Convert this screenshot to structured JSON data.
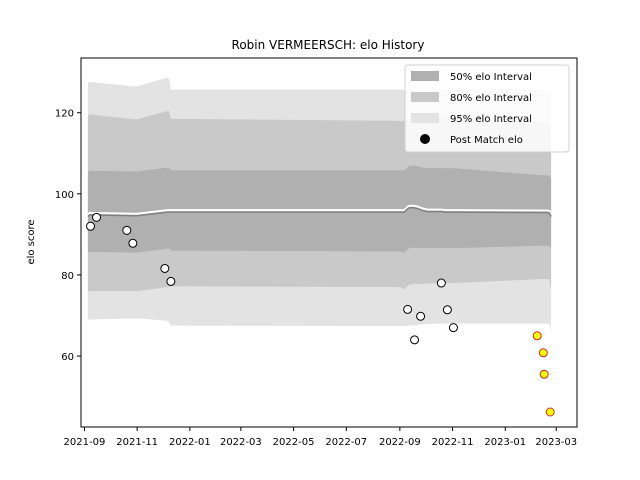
{
  "chart_data": {
    "type": "area",
    "title": "Robin VERMEERSCH: elo History",
    "xlabel": "",
    "ylabel": "elo score",
    "xlim": [
      "2021-08-28",
      "2023-03-25"
    ],
    "ylim": [
      42.5,
      133.5
    ],
    "grid": false,
    "legend_position": "top-right",
    "x_ticks": [
      "2021-09",
      "2021-11",
      "2022-01",
      "2022-03",
      "2022-05",
      "2022-07",
      "2022-09",
      "2022-11",
      "2023-01",
      "2023-03"
    ],
    "y_ticks": [
      60,
      80,
      100,
      120
    ],
    "legend": [
      {
        "label": "50% elo Interval",
        "kind": "patch",
        "color": "#b0b0b0"
      },
      {
        "label": "80% elo Interval",
        "kind": "patch",
        "color": "#c9c9c9"
      },
      {
        "label": "95% elo Interval",
        "kind": "patch",
        "color": "#e3e3e3"
      },
      {
        "label": "Post Match elo",
        "kind": "marker",
        "color": "#000000"
      }
    ],
    "colors": {
      "band_50": "#b0b0b0",
      "band_80": "#c9c9c9",
      "band_95": "#e3e3e3",
      "mean_line": "#808080",
      "marker_edge": "#000000",
      "marker_fill": "#ffffff",
      "recent_edge": "#d62728",
      "recent_fill": "#ffff00"
    },
    "bands": {
      "x": [
        "2021-09-05",
        "2021-09-07",
        "2021-10-28",
        "2021-11-01",
        "2021-12-06",
        "2021-12-08",
        "2021-12-10",
        "2021-12-12",
        "2022-09-01",
        "2022-09-06",
        "2022-09-11",
        "2022-09-16",
        "2022-09-21",
        "2022-09-26",
        "2022-09-29",
        "2022-10-01",
        "2022-10-04",
        "2022-10-07",
        "2022-10-17",
        "2022-10-20",
        "2022-10-23",
        "2022-10-27",
        "2022-11-04",
        "2023-02-12",
        "2023-02-14",
        "2023-02-16",
        "2023-02-18",
        "2023-02-19",
        "2023-02-20",
        "2023-02-21",
        "2023-02-23"
      ],
      "mean": [
        94.4,
        94.8,
        94.6,
        94.6,
        95.5,
        95.5,
        95.5,
        95.5,
        95.5,
        95.5,
        96.5,
        96.6,
        96.4,
        96.0,
        95.8,
        95.7,
        95.6,
        95.6,
        95.6,
        95.6,
        95.5,
        95.5,
        95.5,
        95.4,
        95.4,
        95.4,
        95.4,
        95.4,
        95.3,
        95.3,
        94.4
      ],
      "p50": [
        [
          85.3,
          105.3
        ],
        [
          85.7,
          105.7
        ],
        [
          85.5,
          105.5
        ],
        [
          85.5,
          105.5
        ],
        [
          86.5,
          106.5
        ],
        [
          86.5,
          106.5
        ],
        [
          86.0,
          105.8
        ],
        [
          86.0,
          105.8
        ],
        [
          85.8,
          105.8
        ],
        [
          85.5,
          105.8
        ],
        [
          86.5,
          106.8
        ],
        [
          86.8,
          107.0
        ],
        [
          86.6,
          106.8
        ],
        [
          86.6,
          106.6
        ],
        [
          86.6,
          106.4
        ],
        [
          86.6,
          106.4
        ],
        [
          86.6,
          106.4
        ],
        [
          86.6,
          106.4
        ],
        [
          86.6,
          106.4
        ],
        [
          86.6,
          106.3
        ],
        [
          86.6,
          106.3
        ],
        [
          86.6,
          106.3
        ],
        [
          86.6,
          106.3
        ],
        [
          87.2,
          104.6
        ],
        [
          87.2,
          104.6
        ],
        [
          87.2,
          104.6
        ],
        [
          87.2,
          104.6
        ],
        [
          87.2,
          104.6
        ],
        [
          87.2,
          104.6
        ],
        [
          87.2,
          104.6
        ],
        [
          86.6,
          103.8
        ]
      ],
      "p80": [
        [
          75.9,
          119.2
        ],
        [
          76.0,
          119.6
        ],
        [
          76.0,
          118.4
        ],
        [
          76.0,
          118.4
        ],
        [
          77.0,
          120.4
        ],
        [
          77.0,
          120.4
        ],
        [
          77.2,
          118.5
        ],
        [
          77.2,
          118.5
        ],
        [
          77.0,
          118.0
        ],
        [
          76.5,
          117.9
        ],
        [
          77.5,
          118.3
        ],
        [
          77.8,
          118.6
        ],
        [
          77.8,
          118.6
        ],
        [
          77.8,
          118.6
        ],
        [
          77.9,
          118.6
        ],
        [
          77.9,
          118.6
        ],
        [
          77.9,
          118.6
        ],
        [
          77.9,
          118.6
        ],
        [
          78.0,
          118.6
        ],
        [
          78.0,
          118.6
        ],
        [
          78.0,
          118.6
        ],
        [
          78.0,
          118.6
        ],
        [
          78.0,
          118.6
        ],
        [
          79.0,
          117.7
        ],
        [
          79.0,
          117.7
        ],
        [
          79.0,
          117.7
        ],
        [
          79.0,
          117.7
        ],
        [
          79.0,
          117.7
        ],
        [
          79.0,
          117.7
        ],
        [
          79.0,
          117.7
        ],
        [
          76.2,
          114.8
        ]
      ],
      "p95": [
        [
          68.9,
          127.4
        ],
        [
          69.0,
          127.6
        ],
        [
          69.3,
          126.5
        ],
        [
          69.3,
          126.5
        ],
        [
          68.7,
          128.7
        ],
        [
          68.3,
          128.4
        ],
        [
          67.5,
          125.7
        ],
        [
          67.5,
          125.7
        ],
        [
          67.4,
          125.7
        ],
        [
          67.4,
          125.7
        ],
        [
          67.5,
          125.7
        ],
        [
          67.6,
          125.7
        ],
        [
          67.7,
          125.7
        ],
        [
          67.8,
          125.7
        ],
        [
          67.8,
          125.7
        ],
        [
          67.8,
          125.7
        ],
        [
          67.9,
          125.7
        ],
        [
          67.9,
          125.7
        ],
        [
          68.0,
          125.7
        ],
        [
          68.0,
          125.7
        ],
        [
          68.0,
          125.7
        ],
        [
          68.0,
          125.7
        ],
        [
          68.0,
          125.7
        ],
        [
          68.0,
          125.7
        ],
        [
          68.0,
          125.7
        ],
        [
          68.0,
          125.7
        ],
        [
          68.0,
          125.7
        ],
        [
          68.0,
          125.7
        ],
        [
          68.0,
          125.7
        ],
        [
          68.0,
          125.7
        ],
        [
          66.0,
          125.7
        ]
      ]
    },
    "series": [
      {
        "marker": "circle",
        "points": [
          {
            "x": "2021-09-08",
            "y": 92.0
          },
          {
            "x": "2021-09-15",
            "y": 94.2
          },
          {
            "x": "2021-10-20",
            "y": 91.0
          },
          {
            "x": "2021-10-27",
            "y": 87.8
          },
          {
            "x": "2021-12-03",
            "y": 81.6
          },
          {
            "x": "2021-12-10",
            "y": 78.4
          },
          {
            "x": "2022-09-10",
            "y": 71.5
          },
          {
            "x": "2022-09-18",
            "y": 64.0
          },
          {
            "x": "2022-09-25",
            "y": 69.8
          },
          {
            "x": "2022-10-19",
            "y": 78.0
          },
          {
            "x": "2022-10-26",
            "y": 71.4
          },
          {
            "x": "2022-11-02",
            "y": 67.0
          }
        ]
      },
      {
        "marker": "circle",
        "points": [
          {
            "x": "2023-02-07",
            "y": 65.0
          },
          {
            "x": "2023-02-14",
            "y": 60.8
          },
          {
            "x": "2023-02-15",
            "y": 55.5
          },
          {
            "x": "2023-02-22",
            "y": 46.2
          }
        ]
      }
    ]
  }
}
